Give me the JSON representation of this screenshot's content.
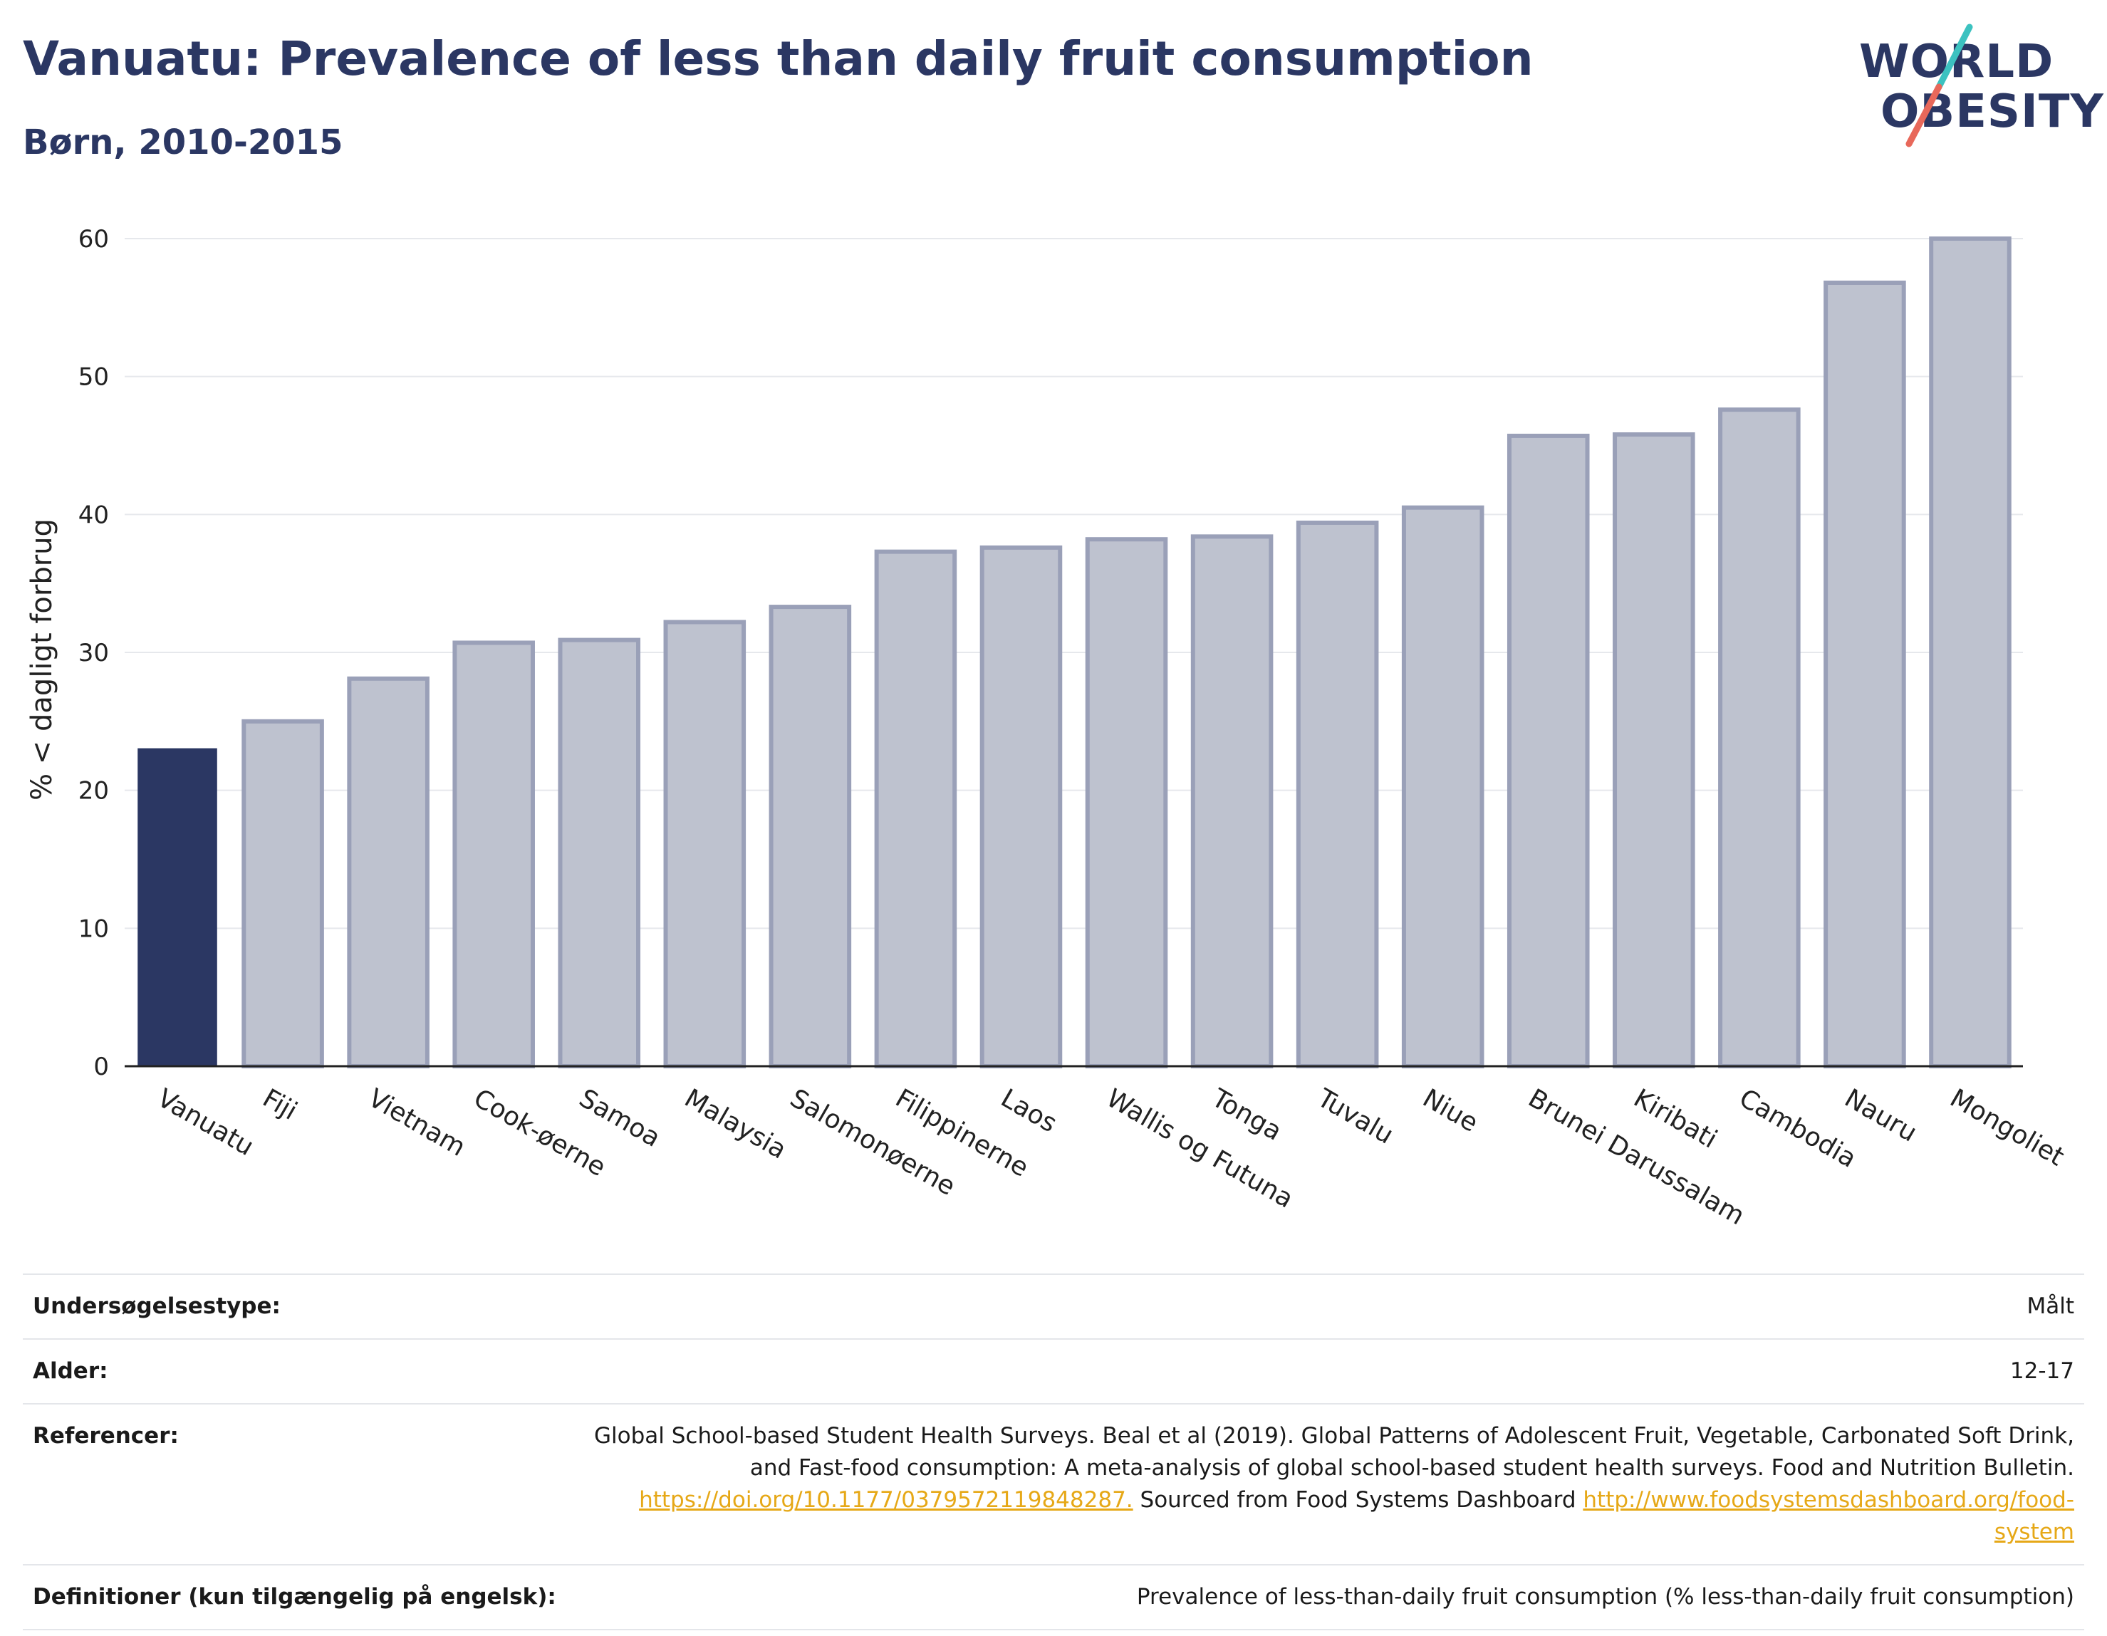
{
  "header": {
    "title": "Vanuatu: Prevalence of less than daily fruit consumption",
    "subtitle": "Børn, 2010-2015"
  },
  "logo": {
    "line1": "WORLD",
    "line2": "OBESITY",
    "accent1": "#3cc2c0",
    "accent2": "#e8685a"
  },
  "colors": {
    "highlight": "#2b3763",
    "bar": "#bec2cf",
    "bar_border": "#9aa0b8",
    "link": "#e6a817"
  },
  "chart_data": {
    "type": "bar",
    "ylabel": "% < dagligt forbrug",
    "ylim": [
      0,
      60
    ],
    "yticks": [
      0,
      10,
      20,
      30,
      40,
      50,
      60
    ],
    "grid": true,
    "highlight": "Vanuatu",
    "categories": [
      "Vanuatu",
      "Fiji",
      "Vietnam",
      "Cook-øerne",
      "Samoa",
      "Malaysia",
      "Salomonøerne",
      "Filippinerne",
      "Laos",
      "Wallis og Futuna",
      "Tonga",
      "Tuvalu",
      "Niue",
      "Brunei Darussalam",
      "Kiribati",
      "Cambodia",
      "Nauru",
      "Mongoliet"
    ],
    "values": [
      23.0,
      25.0,
      28.1,
      30.7,
      30.9,
      32.2,
      33.3,
      37.3,
      37.6,
      38.2,
      38.4,
      39.4,
      40.5,
      45.7,
      45.8,
      47.6,
      56.8,
      60.0
    ]
  },
  "meta": {
    "survey_type_label": "Undersøgelsestype:",
    "survey_type_value": "Målt",
    "age_label": "Alder:",
    "age_value": "12-17",
    "references_label": "Referencer:",
    "references_text1": "Global School-based Student Health Surveys. Beal et al (2019). Global Patterns of Adolescent Fruit, Vegetable, Carbonated Soft Drink, and Fast-food consumption: A meta-analysis of global school-based student health surveys. Food and Nutrition Bulletin.",
    "references_link1": "https://doi.org/10.1177/0379572119848287.",
    "references_text2": "Sourced from Food Systems Dashboard",
    "references_link2": "http://www.foodsystemsdashboard.org/food-system",
    "definitions_label": "Definitioner (kun tilgængelig på engelsk):",
    "definitions_value": "Prevalence of less-than-daily fruit consumption (% less-than-daily fruit consumption)"
  }
}
